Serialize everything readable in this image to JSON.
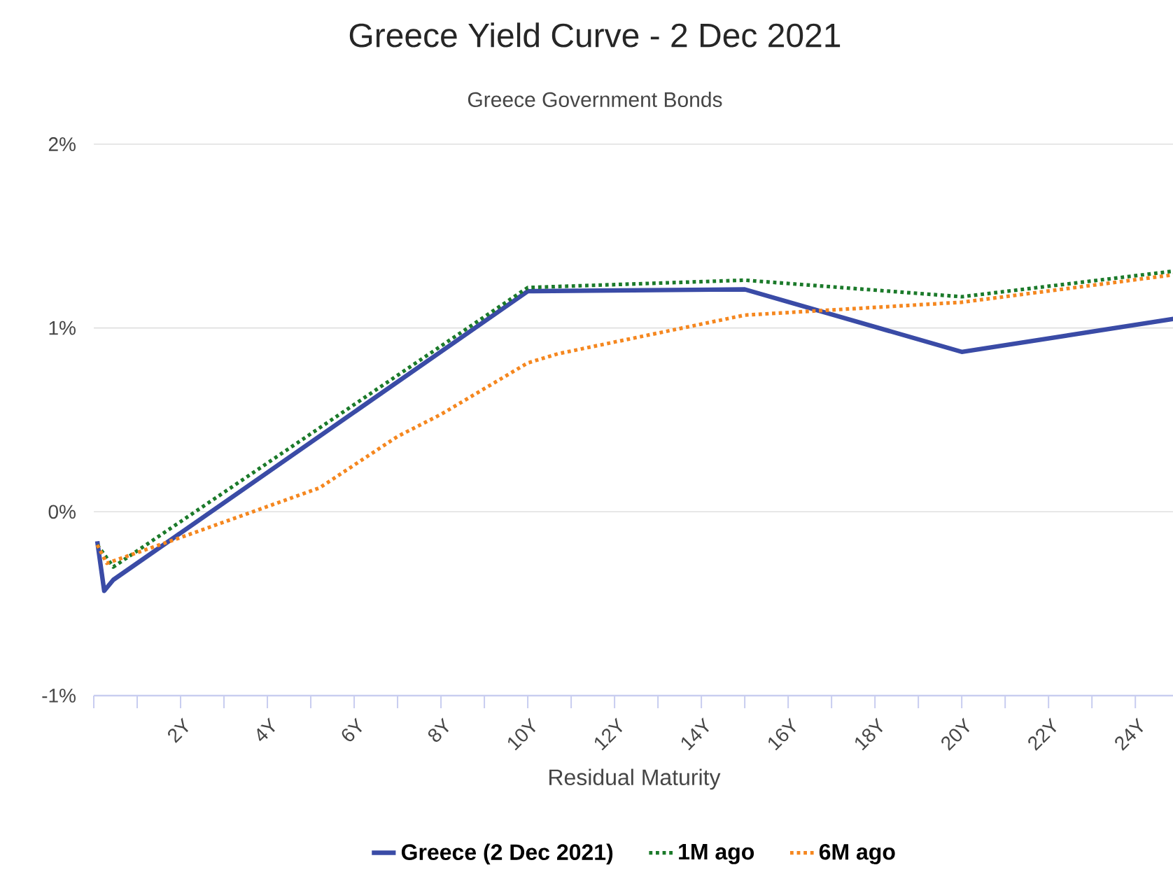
{
  "chart_data": {
    "type": "line",
    "title": "Greece Yield Curve - 2 Dec 2021",
    "subtitle": "Greece Government Bonds",
    "xlabel": "Residual Maturity",
    "xlim": [
      0,
      24.9
    ],
    "ylim": [
      -1,
      2
    ],
    "xticks": [
      {
        "value": 0,
        "label": null
      },
      {
        "value": 1,
        "label": null
      },
      {
        "value": 2,
        "label": "2Y"
      },
      {
        "value": 3,
        "label": null
      },
      {
        "value": 4,
        "label": "4Y"
      },
      {
        "value": 5,
        "label": null
      },
      {
        "value": 6,
        "label": "6Y"
      },
      {
        "value": 7,
        "label": null
      },
      {
        "value": 8,
        "label": "8Y"
      },
      {
        "value": 9,
        "label": null
      },
      {
        "value": 10,
        "label": "10Y"
      },
      {
        "value": 11,
        "label": null
      },
      {
        "value": 12,
        "label": "12Y"
      },
      {
        "value": 13,
        "label": null
      },
      {
        "value": 14,
        "label": "14Y"
      },
      {
        "value": 15,
        "label": null
      },
      {
        "value": 16,
        "label": "16Y"
      },
      {
        "value": 17,
        "label": null
      },
      {
        "value": 18,
        "label": "18Y"
      },
      {
        "value": 19,
        "label": null
      },
      {
        "value": 20,
        "label": "20Y"
      },
      {
        "value": 21,
        "label": null
      },
      {
        "value": 22,
        "label": "22Y"
      },
      {
        "value": 23,
        "label": null
      },
      {
        "value": 24,
        "label": "24Y"
      }
    ],
    "yticks": [
      {
        "value": -1,
        "label": "-1%"
      },
      {
        "value": 0,
        "label": "0%"
      },
      {
        "value": 1,
        "label": "1%"
      },
      {
        "value": 2,
        "label": "2%"
      }
    ],
    "grid": "y",
    "legend": "bottom",
    "marker": "none",
    "series": [
      {
        "name": "Greece (2 Dec 2021)",
        "color": "#3a4ba6",
        "line_style": "solid",
        "x": [
          0.08,
          0.24,
          0.45,
          10,
          15,
          20,
          24.9
        ],
        "values": [
          -0.16,
          -0.43,
          -0.37,
          1.2,
          1.21,
          0.87,
          1.05
        ]
      },
      {
        "name": "1M ago",
        "color": "#1b7a2a",
        "line_style": "dotted",
        "x": [
          0.08,
          0.45,
          10,
          15,
          20,
          24.9
        ],
        "values": [
          -0.18,
          -0.3,
          1.22,
          1.26,
          1.17,
          1.31
        ]
      },
      {
        "name": "6M ago",
        "color": "#f5871f",
        "line_style": "dotted",
        "x": [
          0.08,
          0.3,
          2,
          5.2,
          7,
          8,
          10,
          10.7,
          15,
          20,
          24.9
        ],
        "values": [
          -0.18,
          -0.28,
          -0.14,
          0.13,
          0.41,
          0.53,
          0.81,
          0.86,
          1.07,
          1.14,
          1.29
        ]
      }
    ]
  }
}
